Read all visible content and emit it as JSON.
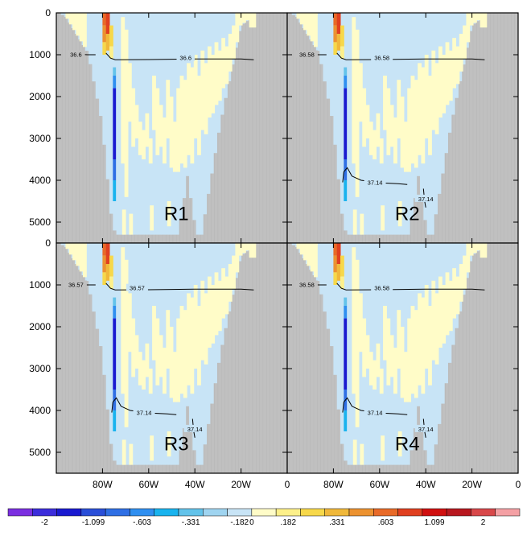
{
  "chart_data": {
    "type": "heatmap",
    "layout": "2x2 panels sharing axes",
    "x_axis": {
      "label": "",
      "range": [
        100,
        0
      ],
      "units": "degrees west",
      "ticks": [
        {
          "value": 80,
          "label": "80W"
        },
        {
          "value": 60,
          "label": "60W"
        },
        {
          "value": 40,
          "label": "40W"
        },
        {
          "value": 20,
          "label": "20W"
        },
        {
          "value": 0,
          "label": "0"
        }
      ]
    },
    "y_axis": {
      "label": "",
      "range": [
        0,
        5500
      ],
      "inverted": true,
      "ticks": [
        {
          "value": 0,
          "label": "0"
        },
        {
          "value": 1000,
          "label": "1000"
        },
        {
          "value": 2000,
          "label": "2000"
        },
        {
          "value": 3000,
          "label": "3000"
        },
        {
          "value": 4000,
          "label": "4000"
        },
        {
          "value": 5000,
          "label": "5000"
        }
      ]
    },
    "colorbar": {
      "position": "bottom",
      "labels": [
        "-2",
        "-1.099",
        "-.603",
        "-.331",
        "-.182",
        "0",
        ".182",
        ".331",
        ".603",
        "1.099",
        "2"
      ],
      "colors": [
        "#7b2fe0",
        "#3c2ddb",
        "#1a1ad0",
        "#2a4fd8",
        "#2f6fe4",
        "#2f8ff0",
        "#19b3ee",
        "#63c3ea",
        "#9fd4f0",
        "#c8e4f6",
        "#fffcc8",
        "#fdf08a",
        "#f7d84a",
        "#f0b83a",
        "#ec9230",
        "#e86a28",
        "#e04020",
        "#d01010",
        "#b8181f",
        "#d8484a",
        "#f4a0a4"
      ]
    },
    "land_color": "#c0c0c0",
    "panels": [
      {
        "name": "R1",
        "contours": [
          {
            "label": "36.6",
            "label_lon": 91.5,
            "label_depth": 1000
          },
          {
            "label": "36.6",
            "label_lon": 44,
            "label_depth": 1080
          }
        ]
      },
      {
        "name": "R2",
        "contours": [
          {
            "label": "36.58",
            "label_lon": 91.5,
            "label_depth": 1000
          },
          {
            "label": "36.58",
            "label_lon": 59,
            "label_depth": 1080
          },
          {
            "label": "37.14",
            "label_lon": 62,
            "label_depth": 4060
          },
          {
            "label": "37.14",
            "label_lon": 40,
            "label_depth": 4450
          }
        ]
      },
      {
        "name": "R3",
        "contours": [
          {
            "label": "36.57",
            "label_lon": 91.5,
            "label_depth": 1000
          },
          {
            "label": "36.57",
            "label_lon": 65,
            "label_depth": 1080
          },
          {
            "label": "37.14",
            "label_lon": 62,
            "label_depth": 4060
          },
          {
            "label": "37.14",
            "label_lon": 40,
            "label_depth": 4450
          }
        ]
      },
      {
        "name": "R4",
        "contours": [
          {
            "label": "36.58",
            "label_lon": 91.5,
            "label_depth": 1000
          },
          {
            "label": "36.58",
            "label_lon": 59,
            "label_depth": 1080
          },
          {
            "label": "37.14",
            "label_lon": 62,
            "label_depth": 4060
          },
          {
            "label": "37.14",
            "label_lon": 40,
            "label_depth": 4450
          }
        ]
      }
    ]
  }
}
